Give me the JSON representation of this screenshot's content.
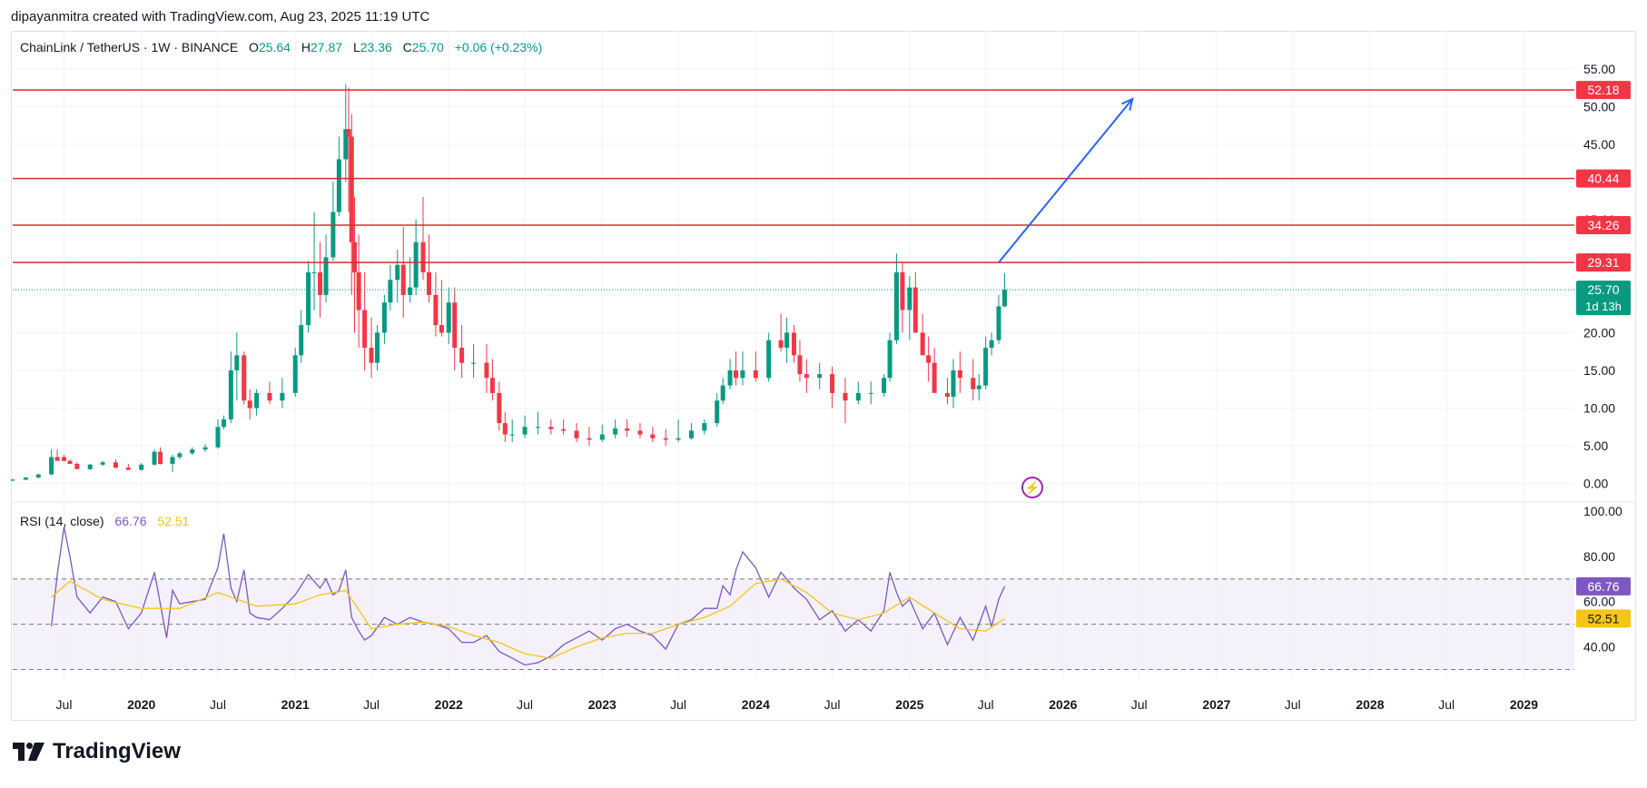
{
  "header": {
    "attribution": "dipayanmitra created with TradingView.com, Aug 23, 2025 11:19 UTC"
  },
  "legend": {
    "symbol": "ChainLink / TetherUS · 1W · BINANCE",
    "open_label": "O",
    "open": "25.64",
    "high_label": "H",
    "high": "27.87",
    "low_label": "L",
    "low": "23.36",
    "close_label": "C",
    "close": "25.70",
    "change": "+0.06 (+0.23%)"
  },
  "rsi_legend": {
    "name": "RSI (14, close)",
    "rsi_value": "66.76",
    "ma_value": "52.51"
  },
  "footer": {
    "brand": "TradingView"
  },
  "colors": {
    "up": "#089981",
    "down": "#f23645",
    "level_line": "#d32f2f",
    "level_label_bg": "#f23645",
    "price_label_bg": "#089981",
    "arrow": "#2962ff",
    "rsi_line": "#7e57c2",
    "rsi_ma": "#f5c518",
    "rsi_band": "#ede7f6"
  },
  "chart_data": [
    {
      "type": "candlestick",
      "title": "ChainLink / TetherUS · 1W · BINANCE",
      "x_ticks": [
        "Jul",
        "2020",
        "Jul",
        "2021",
        "Jul",
        "2022",
        "Jul",
        "2023",
        "Jul",
        "2024",
        "Jul",
        "2025",
        "Jul",
        "2026",
        "Jul",
        "2027",
        "Jul",
        "2028",
        "Jul",
        "2029"
      ],
      "y_ticks": [
        "55.00",
        "50.00",
        "45.00",
        "40.00",
        "35.00",
        "30.00",
        "25.00",
        "20.00",
        "15.00",
        "10.00",
        "5.00",
        "0.00"
      ],
      "ylim": [
        -1.5,
        57.5
      ],
      "x_range": [
        "2019-03",
        "2029-05"
      ],
      "series": [
        {
          "x": [
            "2019-03-01",
            "2019-04-01",
            "2019-05-01",
            "2019-06-01",
            "2019-06-15",
            "2019-07-01",
            "2019-07-15",
            "2019-08-01",
            "2019-09-01",
            "2019-10-01",
            "2019-11-01",
            "2019-12-01",
            "2020-01-01",
            "2020-02-01",
            "2020-02-15",
            "2020-03-15",
            "2020-04-01",
            "2020-05-01",
            "2020-06-01",
            "2020-07-01",
            "2020-07-15",
            "2020-08-01",
            "2020-08-15",
            "2020-09-01",
            "2020-09-15",
            "2020-10-01",
            "2020-11-01",
            "2020-12-01",
            "2021-01-01",
            "2021-01-15",
            "2021-02-01",
            "2021-02-15",
            "2021-03-01",
            "2021-03-15",
            "2021-04-01",
            "2021-04-15",
            "2021-05-01",
            "2021-05-08",
            "2021-05-15",
            "2021-05-22",
            "2021-06-01",
            "2021-06-15",
            "2021-07-01",
            "2021-07-15",
            "2021-08-01",
            "2021-08-15",
            "2021-09-01",
            "2021-09-15",
            "2021-10-01",
            "2021-10-15",
            "2021-11-01",
            "2021-11-15",
            "2021-12-01",
            "2021-12-15",
            "2022-01-01",
            "2022-01-15",
            "2022-02-01",
            "2022-03-01",
            "2022-04-01",
            "2022-04-15",
            "2022-05-01",
            "2022-05-15",
            "2022-06-01",
            "2022-07-01",
            "2022-08-01",
            "2022-09-01",
            "2022-10-01",
            "2022-11-01",
            "2022-12-01",
            "2023-01-01",
            "2023-02-01",
            "2023-03-01",
            "2023-04-01",
            "2023-05-01",
            "2023-06-01",
            "2023-07-01",
            "2023-08-01",
            "2023-09-01",
            "2023-10-01",
            "2023-10-15",
            "2023-11-01",
            "2023-11-15",
            "2023-12-01",
            "2024-01-01",
            "2024-02-01",
            "2024-03-01",
            "2024-03-15",
            "2024-04-01",
            "2024-04-15",
            "2024-05-01",
            "2024-06-01",
            "2024-07-01",
            "2024-08-01",
            "2024-09-01",
            "2024-10-01",
            "2024-11-01",
            "2024-11-15",
            "2024-12-01",
            "2024-12-15",
            "2025-01-01",
            "2025-01-15",
            "2025-02-01",
            "2025-02-15",
            "2025-03-01",
            "2025-04-01",
            "2025-04-15",
            "2025-05-01",
            "2025-06-01",
            "2025-06-15",
            "2025-07-01",
            "2025-07-15",
            "2025-08-01",
            "2025-08-15"
          ],
          "open": [
            0.45,
            0.5,
            0.8,
            1.2,
            3.5,
            3.5,
            3.0,
            2.6,
            1.9,
            2.5,
            2.8,
            2.1,
            1.8,
            2.5,
            4.2,
            2.6,
            3.5,
            4.0,
            4.5,
            4.8,
            7.5,
            8.5,
            15.0,
            17.0,
            11.0,
            10.0,
            12.0,
            11.0,
            12.0,
            17.0,
            21.0,
            28.0,
            28.0,
            25.0,
            30.0,
            36.0,
            43.0,
            47.0,
            46.0,
            32.0,
            28.0,
            23.0,
            18.0,
            16.0,
            20.0,
            24.0,
            27.0,
            29.0,
            25.0,
            26.0,
            32.0,
            28.0,
            25.0,
            21.0,
            20.0,
            24.0,
            18.0,
            16.0,
            16.0,
            14.0,
            12.0,
            8.0,
            6.5,
            6.5,
            7.5,
            7.5,
            7.2,
            7.0,
            6.0,
            5.8,
            6.5,
            7.3,
            7.0,
            6.5,
            6.0,
            5.8,
            6.0,
            7.0,
            8.0,
            11.0,
            13.0,
            15.0,
            14.0,
            15.0,
            14.0,
            19.0,
            18.0,
            20.0,
            17.0,
            14.5,
            14.0,
            14.5,
            12.0,
            11.0,
            12.0,
            12.0,
            14.0,
            19.0,
            28.0,
            23.0,
            26.0,
            20.0,
            17.0,
            16.0,
            12.0,
            11.5,
            15.0,
            14.0,
            12.5,
            13.0,
            18.0,
            19.0,
            23.5
          ],
          "high": [
            0.6,
            0.7,
            1.3,
            4.5,
            4.5,
            3.8,
            3.2,
            2.8,
            2.6,
            3.0,
            3.2,
            2.6,
            2.7,
            4.5,
            4.8,
            3.8,
            4.2,
            4.8,
            5.2,
            8.5,
            9.0,
            17.5,
            20.0,
            17.5,
            12.5,
            12.5,
            13.5,
            14.0,
            18.0,
            23.0,
            29.5,
            36.0,
            32.0,
            33.0,
            40.0,
            46.0,
            53.0,
            52.5,
            49.0,
            38.0,
            33.0,
            28.0,
            22.0,
            21.0,
            25.0,
            29.0,
            31.0,
            34.0,
            30.0,
            35.0,
            38.0,
            33.0,
            28.0,
            27.0,
            26.0,
            26.0,
            21.0,
            18.5,
            18.5,
            16.5,
            13.5,
            9.5,
            8.5,
            9.0,
            9.5,
            8.5,
            8.5,
            8.0,
            7.5,
            7.8,
            8.5,
            8.5,
            8.0,
            7.5,
            7.2,
            8.5,
            8.0,
            8.5,
            12.0,
            14.0,
            16.5,
            17.5,
            17.5,
            17.5,
            20.0,
            22.5,
            22.0,
            21.0,
            19.0,
            16.5,
            16.0,
            15.5,
            14.0,
            13.5,
            13.5,
            14.5,
            20.0,
            30.5,
            29.5,
            27.5,
            28.0,
            22.5,
            19.5,
            18.0,
            14.0,
            16.5,
            17.5,
            16.5,
            14.5,
            19.5,
            20.0,
            25.0,
            27.9
          ],
          "low": [
            0.3,
            0.45,
            0.7,
            1.1,
            3.0,
            2.9,
            2.6,
            2.0,
            1.8,
            2.3,
            2.0,
            1.8,
            1.7,
            2.4,
            2.5,
            1.5,
            3.2,
            3.8,
            4.2,
            4.6,
            7.2,
            8.0,
            11.0,
            10.5,
            8.5,
            9.0,
            10.5,
            10.0,
            11.5,
            16.0,
            20.0,
            23.0,
            22.0,
            24.0,
            29.5,
            35.5,
            40.0,
            36.0,
            25.0,
            20.0,
            18.0,
            15.0,
            14.0,
            15.0,
            18.5,
            23.0,
            24.0,
            22.0,
            24.0,
            25.0,
            27.0,
            24.0,
            19.5,
            19.5,
            18.5,
            15.0,
            14.0,
            14.0,
            12.0,
            11.0,
            7.0,
            5.5,
            5.5,
            6.0,
            6.5,
            6.5,
            6.5,
            5.5,
            5.0,
            5.5,
            6.0,
            6.2,
            6.0,
            5.5,
            5.0,
            5.5,
            5.8,
            6.5,
            7.5,
            10.5,
            12.5,
            13.0,
            13.0,
            13.5,
            13.5,
            17.5,
            16.0,
            16.0,
            13.5,
            12.0,
            12.5,
            10.0,
            8.0,
            10.5,
            10.5,
            11.5,
            13.5,
            18.5,
            20.0,
            19.0,
            20.0,
            17.0,
            13.5,
            12.5,
            10.5,
            10.0,
            12.0,
            11.0,
            11.0,
            12.5,
            17.0,
            18.5,
            23.36
          ],
          "close": [
            0.5,
            0.8,
            1.2,
            3.5,
            3.0,
            3.0,
            2.6,
            1.9,
            2.5,
            2.8,
            2.1,
            1.8,
            2.5,
            4.2,
            2.6,
            3.5,
            4.0,
            4.5,
            4.8,
            7.5,
            8.5,
            15.0,
            17.0,
            11.0,
            10.0,
            12.0,
            11.0,
            12.0,
            17.0,
            21.0,
            28.0,
            28.0,
            25.0,
            30.0,
            36.0,
            43.0,
            47.0,
            46.0,
            32.0,
            28.0,
            23.0,
            18.0,
            16.0,
            20.0,
            24.0,
            27.0,
            29.0,
            25.0,
            26.0,
            32.0,
            28.0,
            25.0,
            21.0,
            20.0,
            24.0,
            18.0,
            16.0,
            16.0,
            14.0,
            12.0,
            8.0,
            6.5,
            6.5,
            7.5,
            7.5,
            7.2,
            7.0,
            6.0,
            5.8,
            6.5,
            7.3,
            7.0,
            6.5,
            6.0,
            5.8,
            6.0,
            7.0,
            8.0,
            11.0,
            13.0,
            15.0,
            14.0,
            15.0,
            14.0,
            19.0,
            18.0,
            20.0,
            17.0,
            14.5,
            14.0,
            14.5,
            12.0,
            11.0,
            12.0,
            12.0,
            14.0,
            19.0,
            28.0,
            23.0,
            26.0,
            20.0,
            17.0,
            16.0,
            12.0,
            11.5,
            15.0,
            14.0,
            12.5,
            13.0,
            18.0,
            19.0,
            23.5,
            25.7
          ]
        }
      ],
      "horizontal_levels": [
        "52.18",
        "40.44",
        "34.26",
        "29.31"
      ],
      "last_price": "25.70",
      "countdown": "1d 13h",
      "projection_arrow": {
        "from": [
          "2025-08-01",
          29.31
        ],
        "to": [
          "2026-06-15",
          51.0
        ]
      }
    },
    {
      "type": "line",
      "title": "RSI (14, close)",
      "y_ticks": [
        "100.00",
        "80.00",
        "60.00",
        "40.00"
      ],
      "ylim": [
        27,
        102
      ],
      "bands": [
        70,
        50,
        30
      ],
      "series": [
        {
          "name": "RSI",
          "x": [
            "2019-06-01",
            "2019-06-15",
            "2019-07-01",
            "2019-07-15",
            "2019-08-01",
            "2019-09-01",
            "2019-10-01",
            "2019-11-01",
            "2019-12-01",
            "2020-01-01",
            "2020-02-01",
            "2020-03-01",
            "2020-03-15",
            "2020-04-01",
            "2020-05-01",
            "2020-06-01",
            "2020-07-01",
            "2020-07-15",
            "2020-08-01",
            "2020-08-15",
            "2020-09-01",
            "2020-09-15",
            "2020-10-01",
            "2020-11-01",
            "2020-12-01",
            "2021-01-01",
            "2021-01-15",
            "2021-02-01",
            "2021-03-01",
            "2021-03-15",
            "2021-04-01",
            "2021-04-15",
            "2021-05-01",
            "2021-05-15",
            "2021-06-01",
            "2021-06-15",
            "2021-07-01",
            "2021-08-01",
            "2021-09-01",
            "2021-10-01",
            "2021-11-01",
            "2021-12-01",
            "2022-01-01",
            "2022-02-01",
            "2022-03-01",
            "2022-04-01",
            "2022-05-01",
            "2022-06-01",
            "2022-07-01",
            "2022-08-01",
            "2022-09-01",
            "2022-10-01",
            "2022-11-01",
            "2022-12-01",
            "2023-01-01",
            "2023-02-01",
            "2023-03-01",
            "2023-04-01",
            "2023-05-01",
            "2023-06-01",
            "2023-07-01",
            "2023-08-01",
            "2023-09-01",
            "2023-10-01",
            "2023-10-15",
            "2023-11-01",
            "2023-11-15",
            "2023-12-01",
            "2024-01-01",
            "2024-02-01",
            "2024-03-01",
            "2024-03-15",
            "2024-04-01",
            "2024-05-01",
            "2024-06-01",
            "2024-07-01",
            "2024-08-01",
            "2024-09-01",
            "2024-10-01",
            "2024-11-01",
            "2024-11-15",
            "2024-12-01",
            "2024-12-15",
            "2025-01-01",
            "2025-02-01",
            "2025-03-01",
            "2025-04-01",
            "2025-05-01",
            "2025-06-01",
            "2025-07-01",
            "2025-07-15",
            "2025-08-01",
            "2025-08-15"
          ],
          "values": [
            49,
            72,
            93,
            80,
            62,
            55,
            62,
            60,
            48,
            55,
            73,
            44,
            65,
            59,
            60,
            61,
            75,
            90,
            66,
            60,
            74,
            55,
            53,
            52,
            57,
            63,
            67,
            72,
            66,
            70,
            63,
            65,
            74,
            53,
            47,
            43,
            45,
            53,
            50,
            53,
            51,
            50,
            48,
            42,
            42,
            45,
            38,
            35,
            32,
            33,
            36,
            41,
            44,
            47,
            43,
            48,
            50,
            47,
            45,
            39,
            50,
            52,
            57,
            57,
            67,
            63,
            74,
            82,
            75,
            62,
            73,
            70,
            66,
            61,
            52,
            56,
            47,
            52,
            47,
            56,
            73,
            64,
            58,
            61,
            48,
            55,
            41,
            53,
            43,
            58,
            49,
            61,
            66.76
          ]
        },
        {
          "name": "RSI-based MA",
          "x": [
            "2019-06-01",
            "2019-07-15",
            "2019-10-01",
            "2020-01-01",
            "2020-04-01",
            "2020-07-01",
            "2020-10-01",
            "2021-01-01",
            "2021-03-01",
            "2021-05-01",
            "2021-07-01",
            "2021-09-01",
            "2021-11-01",
            "2022-01-01",
            "2022-03-01",
            "2022-05-01",
            "2022-07-01",
            "2022-09-01",
            "2022-11-01",
            "2023-01-01",
            "2023-03-01",
            "2023-05-01",
            "2023-07-01",
            "2023-09-01",
            "2023-11-01",
            "2024-01-01",
            "2024-03-01",
            "2024-05-01",
            "2024-07-01",
            "2024-09-01",
            "2024-11-01",
            "2025-01-01",
            "2025-03-01",
            "2025-05-01",
            "2025-07-01",
            "2025-08-15"
          ],
          "values": [
            62,
            69,
            61,
            57,
            57,
            64,
            58,
            59,
            63,
            65,
            48,
            50,
            51,
            49,
            45,
            42,
            37,
            35,
            40,
            44,
            46,
            46,
            50,
            53,
            58,
            68,
            70,
            64,
            55,
            52,
            55,
            62,
            55,
            48,
            47,
            52.51
          ]
        }
      ],
      "last_values": {
        "rsi": "66.76",
        "ma": "52.51"
      }
    }
  ]
}
